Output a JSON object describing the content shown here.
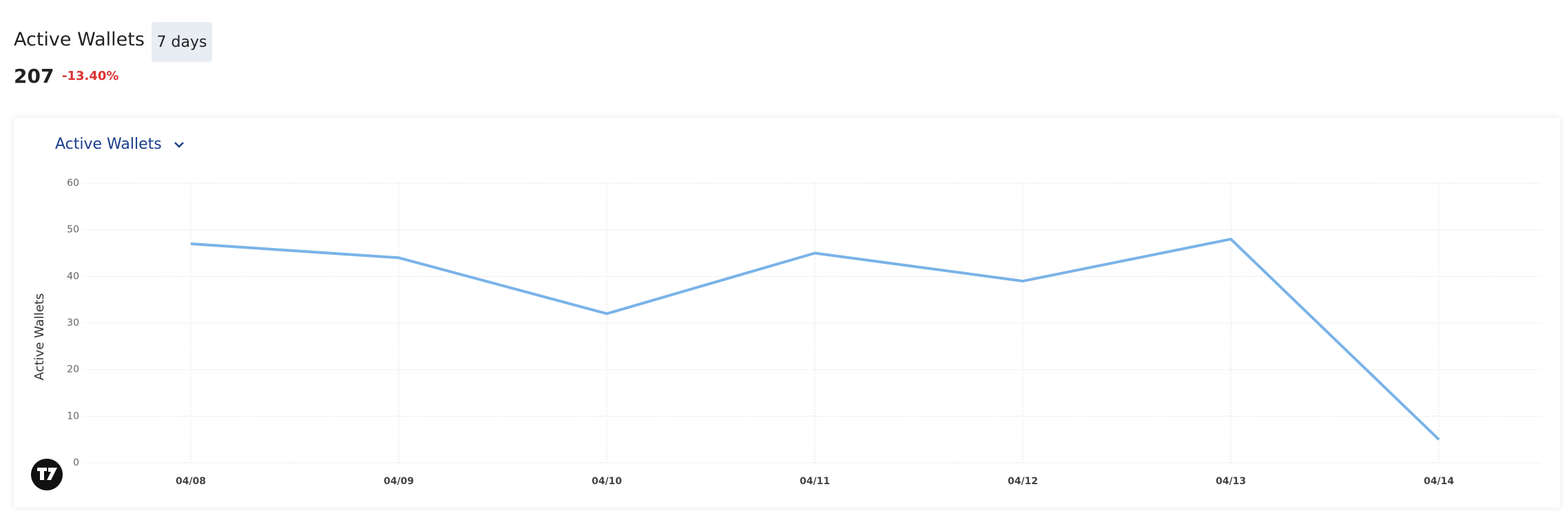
{
  "header": {
    "title": "Active Wallets",
    "period": "7 days",
    "total": 207,
    "change": "-13.40%"
  },
  "chart_data": {
    "type": "line",
    "selector": "Active Wallets",
    "ylabel": "Active Wallets",
    "categories": [
      "04/08",
      "04/09",
      "04/10",
      "04/11",
      "04/12",
      "04/13",
      "04/14"
    ],
    "values": [
      47,
      44,
      32,
      45,
      39,
      48,
      5
    ],
    "color": "#7ab3e8",
    "ylim": [
      0,
      60
    ],
    "yticks": [
      0,
      10,
      20,
      30,
      40,
      50,
      60
    ],
    "grid": true
  }
}
